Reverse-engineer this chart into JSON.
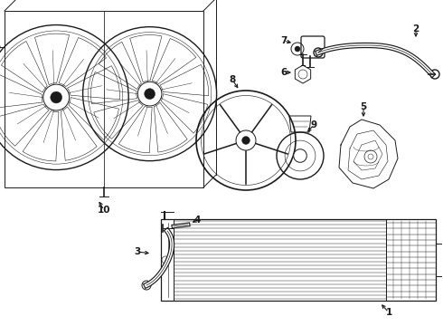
{
  "bg_color": "#ffffff",
  "line_color": "#1a1a1a",
  "lw": 0.7,
  "fig_w": 4.9,
  "fig_h": 3.6,
  "dpi": 100,
  "xlim": [
    0,
    490
  ],
  "ylim": [
    0,
    360
  ]
}
